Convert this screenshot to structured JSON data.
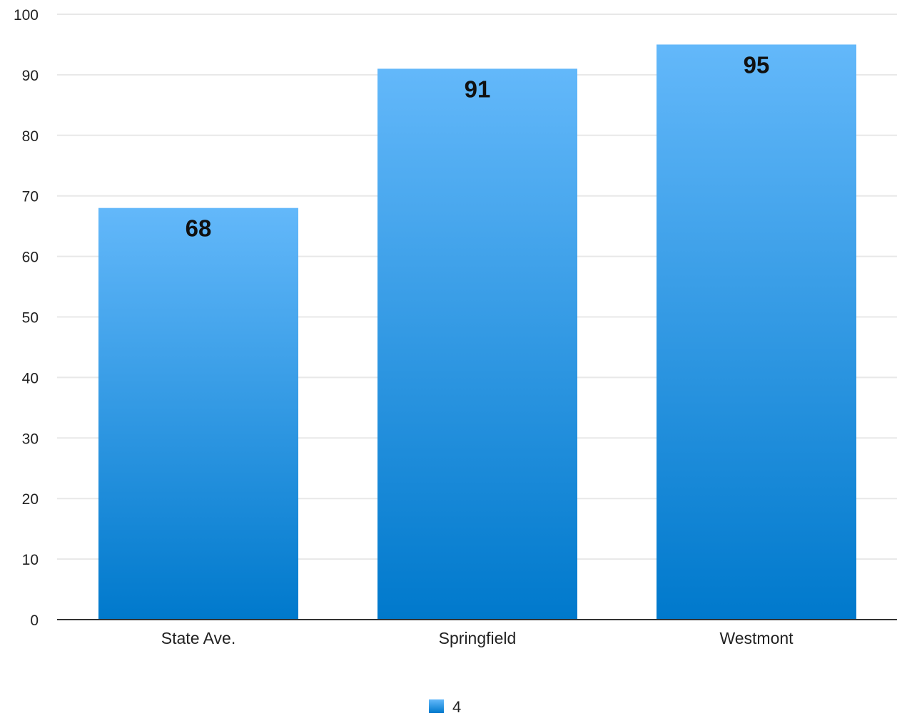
{
  "chart_data": {
    "type": "bar",
    "title": "",
    "xlabel": "",
    "ylabel": "",
    "categories": [
      "State Ave.",
      "Springfield",
      "Westmont"
    ],
    "series": [
      {
        "name": "4",
        "values": [
          68,
          91,
          95
        ]
      }
    ],
    "ylim": [
      0,
      100
    ],
    "yticks": [
      "0",
      "10",
      "20",
      "30",
      "40",
      "50",
      "60",
      "70",
      "80",
      "90",
      "100"
    ],
    "data_labels": [
      "68",
      "91",
      "95"
    ],
    "grid": true,
    "legend_position": "bottom-center",
    "colors": {
      "bar_top": "#63b8fa",
      "bar_bottom": "#0079cc",
      "grid": "#e8e8e8",
      "axis": "#333333"
    }
  }
}
